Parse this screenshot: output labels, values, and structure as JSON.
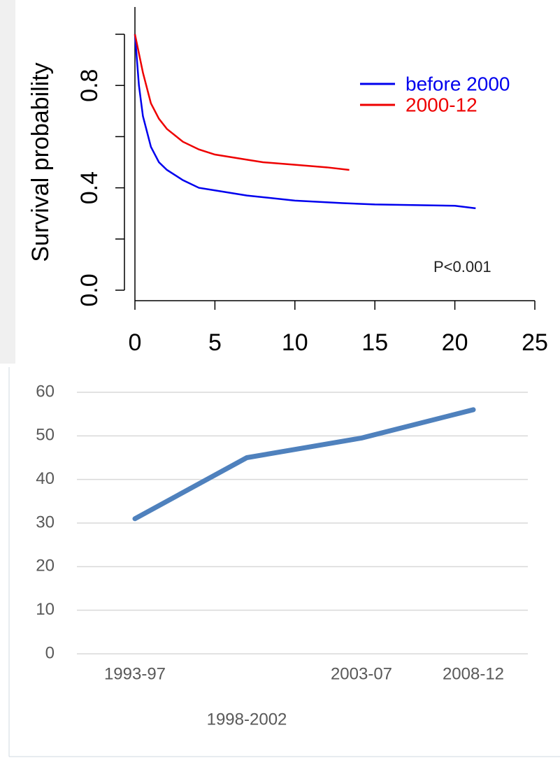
{
  "chart_data": [
    {
      "type": "line",
      "ylabel": "Survival probability",
      "annotation": "P<0.001",
      "xlim": [
        0,
        25
      ],
      "xticks": [
        0,
        5,
        10,
        15,
        20,
        25
      ],
      "ylim": [
        0,
        1
      ],
      "yticks": [
        {
          "value": 0,
          "label": "0.0"
        },
        0.4,
        0.8
      ],
      "yminorticks": [
        0.2,
        0.6,
        1.0
      ],
      "legend": "upper right",
      "series": [
        {
          "name": "before 2000",
          "color": "#0000ee",
          "x": [
            0,
            0.25,
            0.5,
            1,
            1.5,
            2,
            3,
            4,
            5,
            7,
            10,
            13,
            15,
            20,
            21.3
          ],
          "values": [
            1.0,
            0.8,
            0.68,
            0.56,
            0.5,
            0.47,
            0.43,
            0.4,
            0.39,
            0.37,
            0.35,
            0.34,
            0.335,
            0.33,
            0.32
          ]
        },
        {
          "name": "2000-12",
          "color": "#ee0000",
          "x": [
            0,
            0.5,
            1,
            1.5,
            2,
            3,
            4,
            5,
            7,
            8,
            10,
            12,
            13.4
          ],
          "values": [
            1.0,
            0.85,
            0.73,
            0.67,
            0.63,
            0.58,
            0.55,
            0.53,
            0.51,
            0.5,
            0.49,
            0.48,
            0.47
          ]
        }
      ]
    },
    {
      "type": "line",
      "categories": [
        "1993-97",
        "1998-2002",
        "2003-07",
        "2008-12"
      ],
      "values": [
        31,
        45,
        49.5,
        56
      ],
      "color": "#4f81bd",
      "ylim": [
        0,
        60
      ],
      "yticks": [
        0,
        10,
        20,
        30,
        40,
        50,
        60
      ],
      "grid": true
    }
  ]
}
